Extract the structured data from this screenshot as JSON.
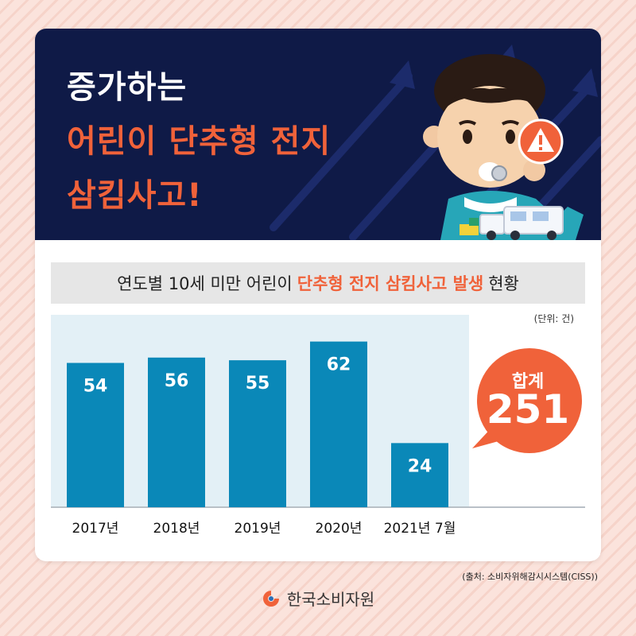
{
  "hero": {
    "title_line1": "증가하는",
    "title_line2": "어린이 단추형 전지",
    "title_line3": "삼킴사고!"
  },
  "subtitle": {
    "prefix": "연도별 10세 미만 어린이",
    "highlight": "단추형 전지 삼킴사고 발생",
    "suffix": "현황"
  },
  "unit": "(단위: 건)",
  "total": {
    "label": "합계",
    "value": "251"
  },
  "source": "(출처: 소비자위해감시시스템(CISS))",
  "brand": {
    "name": "한국소비자원"
  },
  "colors": {
    "navy": "#0f1a47",
    "accent": "#f0623a",
    "bar": "#0a88b8",
    "plot_bg": "#e3f0f6"
  },
  "chart_data": {
    "type": "bar",
    "categories": [
      "2017년",
      "2018년",
      "2019년",
      "2020년",
      "2021년 7월"
    ],
    "values": [
      54,
      56,
      55,
      62,
      24
    ],
    "title": "연도별 10세 미만 어린이 단추형 전지 삼킴사고 발생 현황",
    "xlabel": "",
    "ylabel": "",
    "unit": "(단위: 건)",
    "ylim": [
      0,
      72
    ],
    "grid": false,
    "legend": "none",
    "data_labels": true
  }
}
